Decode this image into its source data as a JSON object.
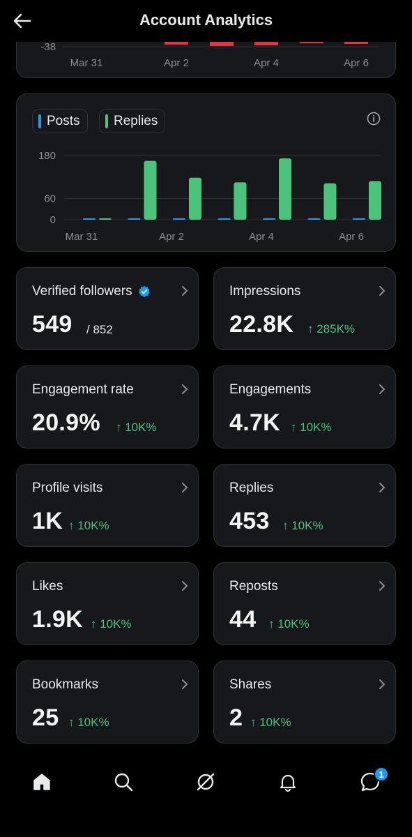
{
  "header": {
    "title": "Account Analytics"
  },
  "top_chart": {
    "y_tick": "-38",
    "x_ticks": [
      "Mar 31",
      "Apr 2",
      "Apr 4",
      "Apr 6"
    ]
  },
  "chart_data": {
    "type": "bar",
    "categories": [
      "Mar 31",
      "Apr 1",
      "Apr 2",
      "Apr 3",
      "Apr 4",
      "Apr 5",
      "Apr 6"
    ],
    "x_tick_labels": [
      "Mar 31",
      "Apr 2",
      "Apr 4",
      "Apr 6"
    ],
    "series": [
      {
        "name": "Posts",
        "color": "#1d9bf0",
        "values": [
          0,
          1,
          1,
          1,
          2,
          1,
          2
        ]
      },
      {
        "name": "Replies",
        "color": "#4cc37a",
        "values": [
          1,
          165,
          118,
          105,
          172,
          102,
          108
        ]
      }
    ],
    "y_ticks": [
      "180",
      "60",
      "0"
    ],
    "ylim": [
      0,
      180
    ],
    "legend": "top-left",
    "grid": true
  },
  "stats": [
    {
      "label": "Verified followers",
      "value": "549",
      "sub": "/ 852",
      "verified": true
    },
    {
      "label": "Impressions",
      "value": "22.8K",
      "delta": "↑ 285K%"
    },
    {
      "label": "Engagement rate",
      "value": "20.9%",
      "delta": "↑ 10K%"
    },
    {
      "label": "Engagements",
      "value": "4.7K",
      "delta": "↑ 10K%"
    },
    {
      "label": "Profile visits",
      "value": "1K",
      "delta": "↑ 10K%"
    },
    {
      "label": "Replies",
      "value": "453",
      "delta": "↑ 10K%"
    },
    {
      "label": "Likes",
      "value": "1.9K",
      "delta": "↑ 10K%"
    },
    {
      "label": "Reposts",
      "value": "44",
      "delta": "↑ 10K%"
    },
    {
      "label": "Bookmarks",
      "value": "25",
      "delta": "↑ 10K%"
    },
    {
      "label": "Shares",
      "value": "2",
      "delta": "↑ 10K%"
    }
  ],
  "nav": {
    "items": [
      "home-icon",
      "search-icon",
      "grok-icon",
      "bell-icon",
      "messages-icon"
    ],
    "messages_badge": "1"
  }
}
